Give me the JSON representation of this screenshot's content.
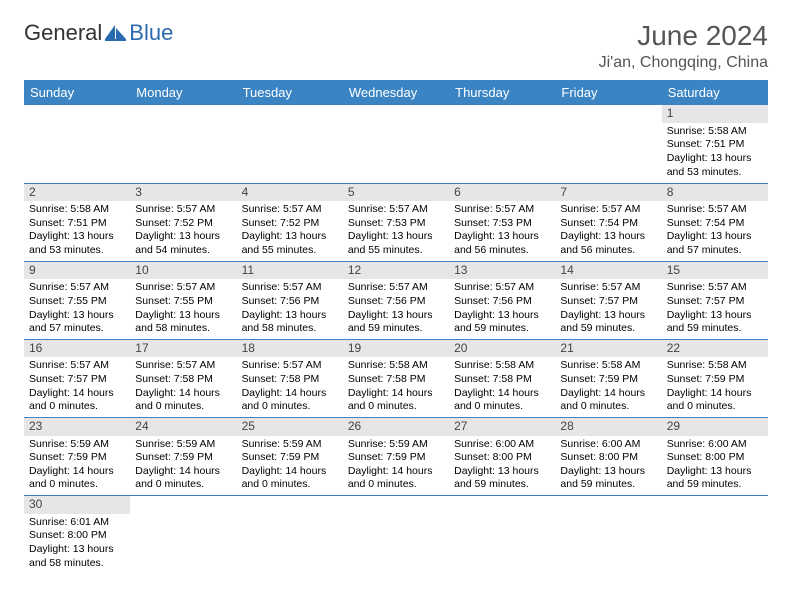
{
  "logo": {
    "text1": "General",
    "text2": "Blue",
    "icon_color": "#2a6bb0"
  },
  "title": "June 2024",
  "location": "Ji'an, Chongqing, China",
  "colors": {
    "header_bg": "#3b84c4",
    "header_text": "#ffffff",
    "daynum_bg": "#e6e6e6",
    "border": "#3b84c4"
  },
  "weekdays": [
    "Sunday",
    "Monday",
    "Tuesday",
    "Wednesday",
    "Thursday",
    "Friday",
    "Saturday"
  ],
  "weeks": [
    [
      null,
      null,
      null,
      null,
      null,
      null,
      {
        "n": "1",
        "sr": "5:58 AM",
        "ss": "7:51 PM",
        "dl": "13 hours and 53 minutes."
      }
    ],
    [
      {
        "n": "2",
        "sr": "5:58 AM",
        "ss": "7:51 PM",
        "dl": "13 hours and 53 minutes."
      },
      {
        "n": "3",
        "sr": "5:57 AM",
        "ss": "7:52 PM",
        "dl": "13 hours and 54 minutes."
      },
      {
        "n": "4",
        "sr": "5:57 AM",
        "ss": "7:52 PM",
        "dl": "13 hours and 55 minutes."
      },
      {
        "n": "5",
        "sr": "5:57 AM",
        "ss": "7:53 PM",
        "dl": "13 hours and 55 minutes."
      },
      {
        "n": "6",
        "sr": "5:57 AM",
        "ss": "7:53 PM",
        "dl": "13 hours and 56 minutes."
      },
      {
        "n": "7",
        "sr": "5:57 AM",
        "ss": "7:54 PM",
        "dl": "13 hours and 56 minutes."
      },
      {
        "n": "8",
        "sr": "5:57 AM",
        "ss": "7:54 PM",
        "dl": "13 hours and 57 minutes."
      }
    ],
    [
      {
        "n": "9",
        "sr": "5:57 AM",
        "ss": "7:55 PM",
        "dl": "13 hours and 57 minutes."
      },
      {
        "n": "10",
        "sr": "5:57 AM",
        "ss": "7:55 PM",
        "dl": "13 hours and 58 minutes."
      },
      {
        "n": "11",
        "sr": "5:57 AM",
        "ss": "7:56 PM",
        "dl": "13 hours and 58 minutes."
      },
      {
        "n": "12",
        "sr": "5:57 AM",
        "ss": "7:56 PM",
        "dl": "13 hours and 59 minutes."
      },
      {
        "n": "13",
        "sr": "5:57 AM",
        "ss": "7:56 PM",
        "dl": "13 hours and 59 minutes."
      },
      {
        "n": "14",
        "sr": "5:57 AM",
        "ss": "7:57 PM",
        "dl": "13 hours and 59 minutes."
      },
      {
        "n": "15",
        "sr": "5:57 AM",
        "ss": "7:57 PM",
        "dl": "13 hours and 59 minutes."
      }
    ],
    [
      {
        "n": "16",
        "sr": "5:57 AM",
        "ss": "7:57 PM",
        "dl": "14 hours and 0 minutes."
      },
      {
        "n": "17",
        "sr": "5:57 AM",
        "ss": "7:58 PM",
        "dl": "14 hours and 0 minutes."
      },
      {
        "n": "18",
        "sr": "5:57 AM",
        "ss": "7:58 PM",
        "dl": "14 hours and 0 minutes."
      },
      {
        "n": "19",
        "sr": "5:58 AM",
        "ss": "7:58 PM",
        "dl": "14 hours and 0 minutes."
      },
      {
        "n": "20",
        "sr": "5:58 AM",
        "ss": "7:58 PM",
        "dl": "14 hours and 0 minutes."
      },
      {
        "n": "21",
        "sr": "5:58 AM",
        "ss": "7:59 PM",
        "dl": "14 hours and 0 minutes."
      },
      {
        "n": "22",
        "sr": "5:58 AM",
        "ss": "7:59 PM",
        "dl": "14 hours and 0 minutes."
      }
    ],
    [
      {
        "n": "23",
        "sr": "5:59 AM",
        "ss": "7:59 PM",
        "dl": "14 hours and 0 minutes."
      },
      {
        "n": "24",
        "sr": "5:59 AM",
        "ss": "7:59 PM",
        "dl": "14 hours and 0 minutes."
      },
      {
        "n": "25",
        "sr": "5:59 AM",
        "ss": "7:59 PM",
        "dl": "14 hours and 0 minutes."
      },
      {
        "n": "26",
        "sr": "5:59 AM",
        "ss": "7:59 PM",
        "dl": "14 hours and 0 minutes."
      },
      {
        "n": "27",
        "sr": "6:00 AM",
        "ss": "8:00 PM",
        "dl": "13 hours and 59 minutes."
      },
      {
        "n": "28",
        "sr": "6:00 AM",
        "ss": "8:00 PM",
        "dl": "13 hours and 59 minutes."
      },
      {
        "n": "29",
        "sr": "6:00 AM",
        "ss": "8:00 PM",
        "dl": "13 hours and 59 minutes."
      }
    ],
    [
      {
        "n": "30",
        "sr": "6:01 AM",
        "ss": "8:00 PM",
        "dl": "13 hours and 58 minutes."
      },
      null,
      null,
      null,
      null,
      null,
      null
    ]
  ],
  "labels": {
    "sunrise": "Sunrise:",
    "sunset": "Sunset:",
    "daylight": "Daylight:"
  }
}
